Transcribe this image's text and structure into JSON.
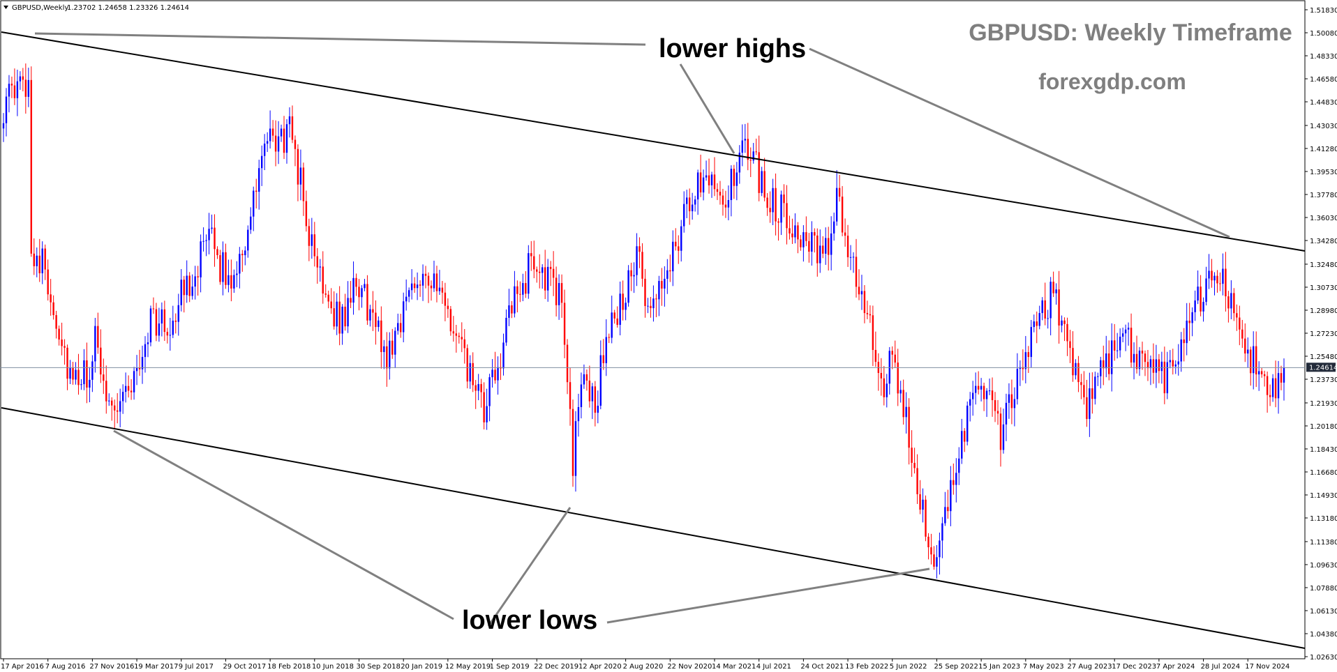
{
  "header": {
    "symbol": "GBPUSD,Weekly",
    "ohlc": "1.23702 1.24658 1.23326 1.24614"
  },
  "title": "GBPUSD: Weekly Timeframe",
  "watermark": "forexgdp.com",
  "annotations": {
    "lower_highs": "lower highs",
    "lower_lows": "lower lows"
  },
  "colors": {
    "bull": "#0000ff",
    "bear": "#ff0000",
    "trendline": "#000000",
    "pointer": "#808080",
    "price_line": "#7f8ea0",
    "price_label_bg": "#232b3a"
  },
  "chart_data": {
    "type": "candlestick",
    "ylim": [
      1.0263,
      1.5183
    ],
    "y_ticks": [
      "1.51830",
      "1.50080",
      "1.48330",
      "1.46580",
      "1.44830",
      "1.43030",
      "1.41280",
      "1.39530",
      "1.37780",
      "1.36030",
      "1.34280",
      "1.32480",
      "1.30730",
      "1.28980",
      "1.27230",
      "1.25480",
      "1.23730",
      "1.21930",
      "1.20180",
      "1.18430",
      "1.16680",
      "1.14930",
      "1.13180",
      "1.11380",
      "1.09630",
      "1.07880",
      "1.06130",
      "1.04380",
      "1.02630"
    ],
    "x_ticks": [
      "17 Apr 2016",
      "7 Aug 2016",
      "27 Nov 2016",
      "19 Mar 2017",
      "9 Jul 2017",
      "29 Oct 2017",
      "18 Feb 2018",
      "10 Jun 2018",
      "30 Sep 2018",
      "20 Jan 2019",
      "12 May 2019",
      "1 Sep 2019",
      "22 Dec 2019",
      "12 Apr 2020",
      "2 Aug 2020",
      "22 Nov 2020",
      "14 Mar 2021",
      "4 Jul 2021",
      "24 Oct 2021",
      "13 Feb 2022",
      "5 Jun 2022",
      "25 Sep 2022",
      "15 Jan 2023",
      "7 May 2023",
      "27 Aug 2023",
      "17 Dec 2023",
      "7 Apr 2024",
      "28 Jul 2024",
      "17 Nov 2024"
    ],
    "current_price": "1.24614",
    "anchors": [
      [
        "2016-04-17",
        1.445
      ],
      [
        "2016-06-19",
        1.465
      ],
      [
        "2016-06-26",
        1.34
      ],
      [
        "2016-07-31",
        1.32
      ],
      [
        "2016-10-09",
        1.23
      ],
      [
        "2016-11-27",
        1.245
      ],
      [
        "2016-12-04",
        1.265
      ],
      [
        "2017-01-15",
        1.215
      ],
      [
        "2017-03-19",
        1.24
      ],
      [
        "2017-04-23",
        1.285
      ],
      [
        "2017-06-04",
        1.275
      ],
      [
        "2017-07-09",
        1.3
      ],
      [
        "2017-09-03",
        1.335
      ],
      [
        "2017-09-24",
        1.34
      ],
      [
        "2017-11-05",
        1.31
      ],
      [
        "2017-12-31",
        1.355
      ],
      [
        "2018-01-28",
        1.41
      ],
      [
        "2018-04-15",
        1.425
      ],
      [
        "2018-06-03",
        1.335
      ],
      [
        "2018-08-12",
        1.28
      ],
      [
        "2018-09-30",
        1.31
      ],
      [
        "2018-12-09",
        1.255
      ],
      [
        "2019-02-24",
        1.32
      ],
      [
        "2019-03-17",
        1.32
      ],
      [
        "2019-05-12",
        1.285
      ],
      [
        "2019-08-11",
        1.21
      ],
      [
        "2019-10-20",
        1.29
      ],
      [
        "2019-12-15",
        1.33
      ],
      [
        "2020-02-23",
        1.295
      ],
      [
        "2020-03-15",
        1.22
      ],
      [
        "2020-03-22",
        1.165
      ],
      [
        "2020-04-12",
        1.245
      ],
      [
        "2020-05-17",
        1.215
      ],
      [
        "2020-06-07",
        1.26
      ],
      [
        "2020-08-02",
        1.305
      ],
      [
        "2020-09-06",
        1.33
      ],
      [
        "2020-09-27",
        1.28
      ],
      [
        "2020-12-27",
        1.36
      ],
      [
        "2021-02-21",
        1.4
      ],
      [
        "2021-04-11",
        1.375
      ],
      [
        "2021-06-06",
        1.415
      ],
      [
        "2021-07-18",
        1.38
      ],
      [
        "2021-10-03",
        1.355
      ],
      [
        "2021-12-12",
        1.325
      ],
      [
        "2022-01-16",
        1.37
      ],
      [
        "2022-03-13",
        1.31
      ],
      [
        "2022-05-15",
        1.225
      ],
      [
        "2022-06-05",
        1.255
      ],
      [
        "2022-09-25",
        1.09
      ],
      [
        "2022-11-20",
        1.19
      ],
      [
        "2023-01-15",
        1.235
      ],
      [
        "2023-03-05",
        1.195
      ],
      [
        "2023-05-07",
        1.255
      ],
      [
        "2023-07-16",
        1.305
      ],
      [
        "2023-10-08",
        1.215
      ],
      [
        "2023-12-24",
        1.27
      ],
      [
        "2024-04-21",
        1.24
      ],
      [
        "2024-08-25",
        1.325
      ],
      [
        "2024-11-10",
        1.265
      ],
      [
        "2025-01-12",
        1.22
      ],
      [
        "2025-02-16",
        1.2461
      ]
    ]
  }
}
